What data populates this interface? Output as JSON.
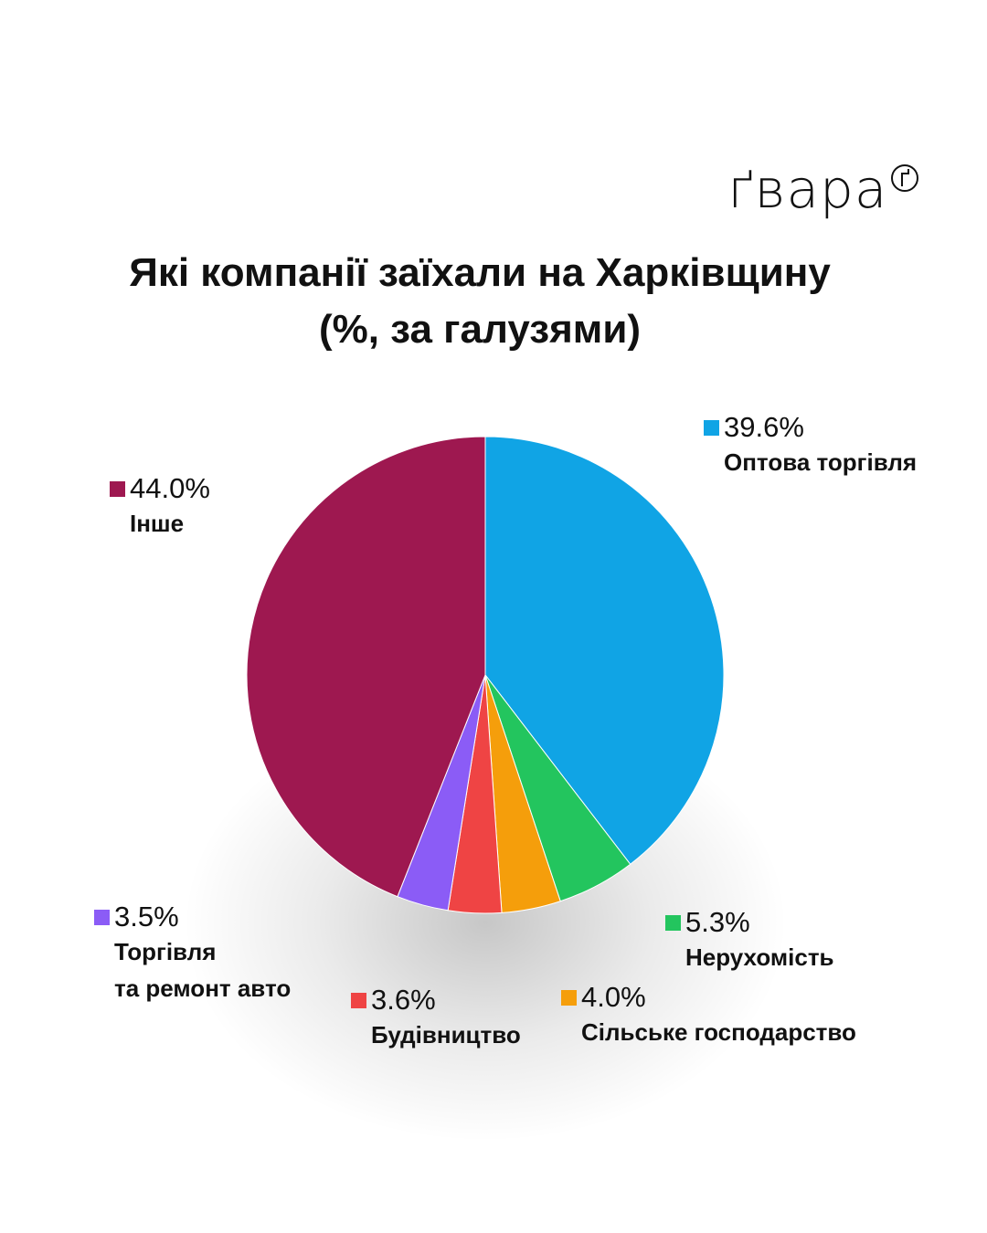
{
  "logo": {
    "text": "ґвара",
    "mark": "circled-g-icon"
  },
  "chart_data": {
    "type": "pie",
    "title_line1": "Які компанії заїхали на Харківщину",
    "title_line2": "(%, за галузями)",
    "unit": "%",
    "slices": [
      {
        "pct_label": "39.6%",
        "value": 39.6,
        "name_lines": [
          "Оптова торгівля"
        ],
        "color": "#10a4e5"
      },
      {
        "pct_label": "5.3%",
        "value": 5.3,
        "name_lines": [
          "Нерухомість"
        ],
        "color": "#23c55e"
      },
      {
        "pct_label": "4.0%",
        "value": 4.0,
        "name_lines": [
          "Сільське господарство"
        ],
        "color": "#f59e0b"
      },
      {
        "pct_label": "3.6%",
        "value": 3.6,
        "name_lines": [
          "Будівництво"
        ],
        "color": "#ef4444"
      },
      {
        "pct_label": "3.5%",
        "value": 3.5,
        "name_lines": [
          "Торгівля",
          "та ремонт авто"
        ],
        "color": "#8b5cf6"
      },
      {
        "pct_label": "44.0%",
        "value": 44.0,
        "name_lines": [
          "Інше"
        ],
        "color": "#9e1850"
      }
    ]
  }
}
